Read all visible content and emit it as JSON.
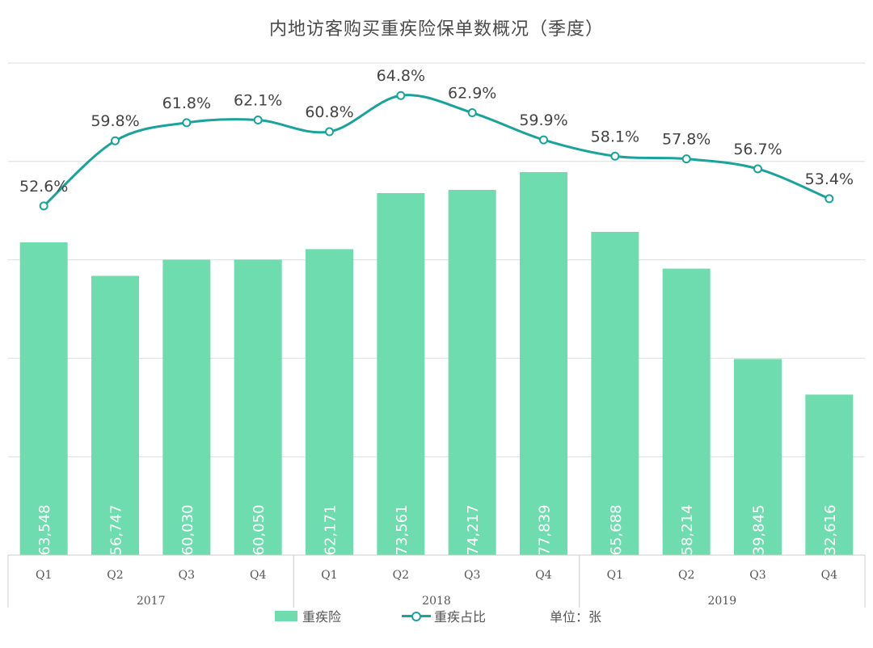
{
  "chart_data": {
    "type": "bar",
    "title": "内地访客购买重疾险保单数概况（季度）",
    "categories": [
      "Q1",
      "Q2",
      "Q3",
      "Q4",
      "Q1",
      "Q2",
      "Q3",
      "Q4",
      "Q1",
      "Q2",
      "Q3",
      "Q4"
    ],
    "category_labels": [
      "63,548",
      "56,747",
      "60,030",
      "60,050",
      "62,171",
      "73,561",
      "74,217",
      "77,839",
      "65,688",
      "58,214",
      "39,845",
      "32,616"
    ],
    "years": [
      "2017",
      "2018",
      "2019"
    ],
    "series": [
      {
        "name": "重疾险",
        "type": "bar",
        "color": "#6fdcaf",
        "values": [
          63548,
          56747,
          60030,
          60050,
          62171,
          73561,
          74217,
          77839,
          65688,
          58214,
          39845,
          32616
        ],
        "labels": [
          "63,548",
          "56,747",
          "60,030",
          "60,050",
          "62,171",
          "73,561",
          "74,217",
          "77,839",
          "65,688",
          "58,214",
          "39,845",
          "32,616"
        ]
      },
      {
        "name": "重疾占比",
        "type": "line",
        "color": "#1aa39a",
        "values": [
          52.6,
          59.8,
          61.8,
          62.1,
          60.8,
          64.8,
          62.9,
          59.9,
          58.1,
          57.8,
          56.7,
          53.4
        ],
        "labels": [
          "52.6%",
          "59.8%",
          "61.8%",
          "62.1%",
          "60.8%",
          "64.8%",
          "62.9%",
          "59.9%",
          "58.1%",
          "57.8%",
          "56.7%",
          "53.4%"
        ]
      }
    ],
    "unit_note": "单位：张",
    "ylim": [
      0,
      100000
    ],
    "grid": true,
    "legend_position": "bottom"
  }
}
